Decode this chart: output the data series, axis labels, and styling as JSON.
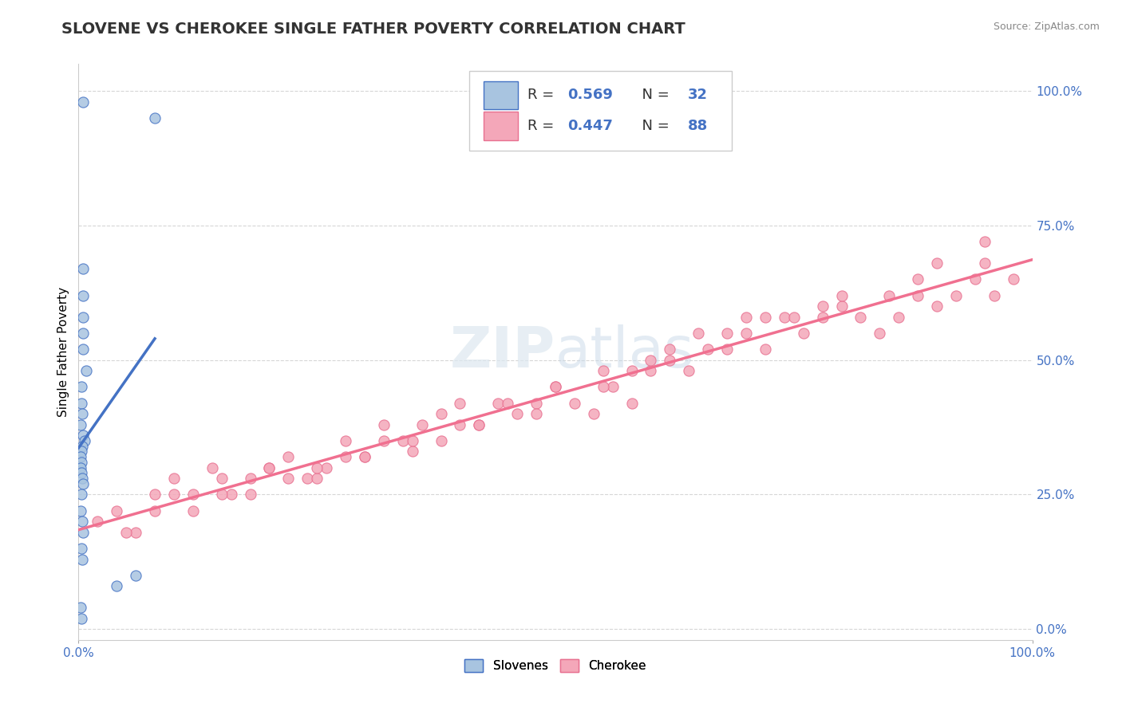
{
  "title": "SLOVENE VS CHEROKEE SINGLE FATHER POVERTY CORRELATION CHART",
  "source": "Source: ZipAtlas.com",
  "ylabel": "Single Father Poverty",
  "legend_label1": "Slovenes",
  "legend_label2": "Cherokee",
  "r1": 0.569,
  "n1": 32,
  "r2": 0.447,
  "n2": 88,
  "color_slovene_fill": "#a8c4e0",
  "color_slovene_edge": "#4472c4",
  "color_cherokee_fill": "#f4a7b9",
  "color_cherokee_edge": "#e87090",
  "color_line_slovene": "#4472c4",
  "color_line_cherokee": "#f07090",
  "watermark_zip": "ZIP",
  "watermark_atlas": "atlas",
  "xlim": [
    0.0,
    1.0
  ],
  "ylim": [
    -0.02,
    1.05
  ],
  "ytick_values": [
    0.0,
    0.25,
    0.5,
    0.75,
    1.0
  ],
  "xtick_values": [
    0.0,
    1.0
  ],
  "slovene_x": [
    0.005,
    0.08,
    0.005,
    0.005,
    0.005,
    0.005,
    0.005,
    0.008,
    0.003,
    0.003,
    0.004,
    0.002,
    0.005,
    0.006,
    0.004,
    0.003,
    0.002,
    0.003,
    0.002,
    0.003,
    0.004,
    0.005,
    0.003,
    0.002,
    0.004,
    0.005,
    0.003,
    0.004,
    0.06,
    0.04,
    0.002,
    0.003
  ],
  "slovene_y": [
    0.98,
    0.95,
    0.67,
    0.62,
    0.58,
    0.55,
    0.52,
    0.48,
    0.45,
    0.42,
    0.4,
    0.38,
    0.36,
    0.35,
    0.34,
    0.33,
    0.32,
    0.31,
    0.3,
    0.29,
    0.28,
    0.27,
    0.25,
    0.22,
    0.2,
    0.18,
    0.15,
    0.13,
    0.1,
    0.08,
    0.04,
    0.02
  ],
  "cherokee_x": [
    0.02,
    0.04,
    0.06,
    0.08,
    0.1,
    0.12,
    0.14,
    0.16,
    0.18,
    0.2,
    0.22,
    0.24,
    0.26,
    0.28,
    0.3,
    0.32,
    0.34,
    0.36,
    0.38,
    0.4,
    0.42,
    0.44,
    0.46,
    0.48,
    0.5,
    0.52,
    0.54,
    0.56,
    0.58,
    0.6,
    0.62,
    0.64,
    0.66,
    0.68,
    0.7,
    0.72,
    0.74,
    0.76,
    0.78,
    0.8,
    0.82,
    0.84,
    0.86,
    0.88,
    0.9,
    0.92,
    0.94,
    0.96,
    0.98,
    0.55,
    0.25,
    0.38,
    0.48,
    0.62,
    0.72,
    0.35,
    0.18,
    0.08,
    0.15,
    0.28,
    0.45,
    0.58,
    0.68,
    0.78,
    0.88,
    0.95,
    0.42,
    0.32,
    0.22,
    0.12,
    0.05,
    0.5,
    0.6,
    0.3,
    0.4,
    0.7,
    0.2,
    0.1,
    0.8,
    0.9,
    0.65,
    0.75,
    0.85,
    0.95,
    0.15,
    0.25,
    0.35,
    0.55
  ],
  "cherokee_y": [
    0.2,
    0.22,
    0.18,
    0.25,
    0.28,
    0.22,
    0.3,
    0.25,
    0.28,
    0.3,
    0.32,
    0.28,
    0.3,
    0.35,
    0.32,
    0.38,
    0.35,
    0.38,
    0.4,
    0.42,
    0.38,
    0.42,
    0.4,
    0.42,
    0.45,
    0.42,
    0.4,
    0.45,
    0.42,
    0.48,
    0.5,
    0.48,
    0.52,
    0.52,
    0.55,
    0.52,
    0.58,
    0.55,
    0.58,
    0.6,
    0.58,
    0.55,
    0.58,
    0.62,
    0.6,
    0.62,
    0.65,
    0.62,
    0.65,
    0.48,
    0.28,
    0.35,
    0.4,
    0.52,
    0.58,
    0.33,
    0.25,
    0.22,
    0.28,
    0.32,
    0.42,
    0.48,
    0.55,
    0.6,
    0.65,
    0.68,
    0.38,
    0.35,
    0.28,
    0.25,
    0.18,
    0.45,
    0.5,
    0.32,
    0.38,
    0.58,
    0.3,
    0.25,
    0.62,
    0.68,
    0.55,
    0.58,
    0.62,
    0.72,
    0.25,
    0.3,
    0.35,
    0.45
  ],
  "title_fontsize": 14,
  "source_fontsize": 9,
  "tick_fontsize": 11,
  "legend_fontsize": 13,
  "ylabel_fontsize": 11
}
